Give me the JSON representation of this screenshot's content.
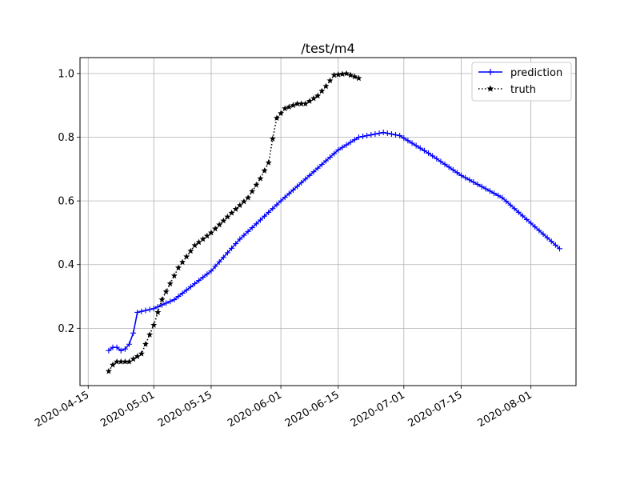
{
  "chart_data": {
    "type": "line",
    "title": "/test/m4",
    "xlabel": "",
    "ylabel": "",
    "x_axis_type": "date",
    "xlim": [
      "2020-04-13",
      "2020-08-12"
    ],
    "ylim": [
      0.02,
      1.05
    ],
    "grid": true,
    "legend_position": "top-right",
    "x_ticks": [
      "2020-04-15",
      "2020-05-01",
      "2020-05-15",
      "2020-06-01",
      "2020-06-15",
      "2020-07-01",
      "2020-07-15",
      "2020-08-01"
    ],
    "y_ticks": [
      "0.2",
      "0.4",
      "0.6",
      "0.8",
      "1.0"
    ],
    "series": [
      {
        "name": "prediction",
        "color": "#0000ff",
        "line_style": "solid",
        "marker": "plus",
        "anchors": [
          [
            "2020-04-20",
            0.13
          ],
          [
            "2020-04-21",
            0.14
          ],
          [
            "2020-04-22",
            0.14
          ],
          [
            "2020-04-23",
            0.13
          ],
          [
            "2020-04-24",
            0.135
          ],
          [
            "2020-04-25",
            0.15
          ],
          [
            "2020-04-26",
            0.185
          ],
          [
            "2020-04-27",
            0.25
          ],
          [
            "2020-05-01",
            0.262
          ],
          [
            "2020-05-06",
            0.29
          ],
          [
            "2020-05-15",
            0.38
          ],
          [
            "2020-05-22",
            0.48
          ],
          [
            "2020-06-01",
            0.6
          ],
          [
            "2020-06-08",
            0.68
          ],
          [
            "2020-06-15",
            0.76
          ],
          [
            "2020-06-20",
            0.8
          ],
          [
            "2020-06-26",
            0.815
          ],
          [
            "2020-06-30",
            0.805
          ],
          [
            "2020-07-07",
            0.75
          ],
          [
            "2020-07-15",
            0.68
          ],
          [
            "2020-07-25",
            0.61
          ],
          [
            "2020-08-01",
            0.53
          ],
          [
            "2020-08-08",
            0.45
          ]
        ]
      },
      {
        "name": "truth",
        "color": "#000000",
        "line_style": "dotted",
        "marker": "star",
        "anchors": [
          [
            "2020-04-20",
            0.065
          ],
          [
            "2020-04-21",
            0.085
          ],
          [
            "2020-04-22",
            0.095
          ],
          [
            "2020-04-25",
            0.095
          ],
          [
            "2020-04-28",
            0.12
          ],
          [
            "2020-05-01",
            0.21
          ],
          [
            "2020-05-03",
            0.29
          ],
          [
            "2020-05-07",
            0.39
          ],
          [
            "2020-05-11",
            0.46
          ],
          [
            "2020-05-15",
            0.5
          ],
          [
            "2020-05-19",
            0.55
          ],
          [
            "2020-05-24",
            0.61
          ],
          [
            "2020-05-27",
            0.67
          ],
          [
            "2020-05-29",
            0.72
          ],
          [
            "2020-05-30",
            0.795
          ],
          [
            "2020-05-31",
            0.86
          ],
          [
            "2020-06-02",
            0.89
          ],
          [
            "2020-06-05",
            0.905
          ],
          [
            "2020-06-07",
            0.905
          ],
          [
            "2020-06-10",
            0.93
          ],
          [
            "2020-06-12",
            0.96
          ],
          [
            "2020-06-14",
            0.995
          ],
          [
            "2020-06-17",
            1.0
          ],
          [
            "2020-06-20",
            0.985
          ]
        ]
      }
    ]
  }
}
